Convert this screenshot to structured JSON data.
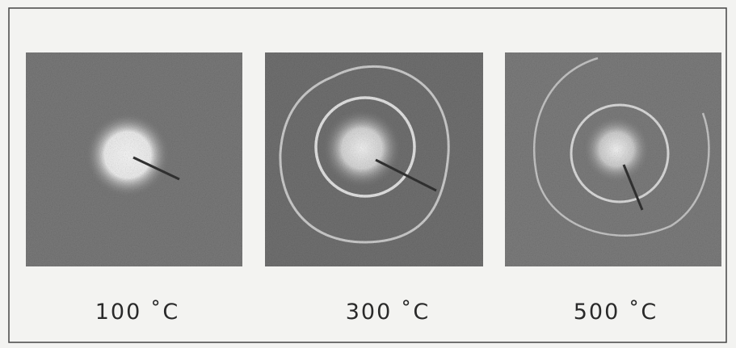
{
  "figure": {
    "panels": [
      {
        "label": "100 ˚C"
      },
      {
        "label": "300 ˚C"
      },
      {
        "label": "500 ˚C"
      }
    ]
  }
}
